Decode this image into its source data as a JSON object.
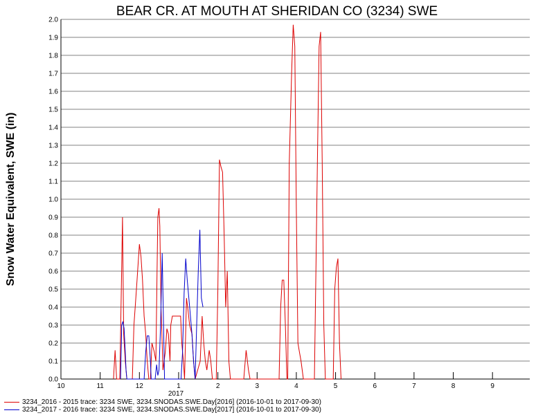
{
  "chart_data": {
    "type": "line",
    "title": "BEAR CR. AT MOUTH AT SHERIDAN CO (3234) SWE",
    "ylabel": "Snow Water Equivalent, SWE (in)",
    "xlabel": "",
    "ylim": [
      0,
      2.0
    ],
    "xlim": [
      10.0,
      10.95
    ],
    "x_tick_labels": [
      {
        "x": 10,
        "label": "10"
      },
      {
        "x": 11,
        "label": "11"
      },
      {
        "x": 12,
        "label": "12"
      },
      {
        "x": 13,
        "label": "1"
      },
      {
        "x": 14,
        "label": "2"
      },
      {
        "x": 15,
        "label": "3"
      },
      {
        "x": 16,
        "label": "4"
      },
      {
        "x": 17,
        "label": "5"
      },
      {
        "x": 18,
        "label": "6"
      },
      {
        "x": 19,
        "label": "7"
      },
      {
        "x": 20,
        "label": "8"
      },
      {
        "x": 21,
        "label": "9"
      }
    ],
    "year_label": {
      "x": 13,
      "label": "2017"
    },
    "y_ticks": [
      0.0,
      0.1,
      0.2,
      0.3,
      0.4,
      0.5,
      0.6,
      0.7,
      0.8,
      0.9,
      1.0,
      1.1,
      1.2,
      1.3,
      1.4,
      1.5,
      1.6,
      1.7,
      1.8,
      1.9,
      2.0
    ],
    "grid": true,
    "legend_position": "bottom",
    "series": [
      {
        "name": "3234_2016 - 2015 trace: 3234 SWE, 3234.SNODAS.SWE.Day[2016] (2016-10-01 to 2017-09-30)",
        "color": "#dd0000",
        "points": [
          [
            11.34,
            0
          ],
          [
            11.38,
            0.16
          ],
          [
            11.42,
            0
          ],
          [
            11.5,
            0
          ],
          [
            11.54,
            0.5
          ],
          [
            11.57,
            0.9
          ],
          [
            11.6,
            0.25
          ],
          [
            11.64,
            0.1
          ],
          [
            11.68,
            0
          ],
          [
            11.82,
            0
          ],
          [
            11.86,
            0.3
          ],
          [
            11.9,
            0.42
          ],
          [
            11.94,
            0.55
          ],
          [
            11.97,
            0.65
          ],
          [
            12.0,
            0.75
          ],
          [
            12.04,
            0.68
          ],
          [
            12.08,
            0.55
          ],
          [
            12.12,
            0.35
          ],
          [
            12.16,
            0.25
          ],
          [
            12.2,
            0.1
          ],
          [
            12.24,
            0
          ],
          [
            12.28,
            0
          ],
          [
            12.32,
            0.2
          ],
          [
            12.38,
            0.15
          ],
          [
            12.42,
            0.1
          ],
          [
            12.45,
            0.6
          ],
          [
            12.47,
            0.9
          ],
          [
            12.5,
            0.95
          ],
          [
            12.52,
            0.85
          ],
          [
            12.55,
            0.4
          ],
          [
            12.58,
            0.2
          ],
          [
            12.6,
            0.05
          ],
          [
            12.66,
            0.15
          ],
          [
            12.7,
            0.28
          ],
          [
            12.74,
            0.25
          ],
          [
            12.78,
            0.1
          ],
          [
            12.8,
            0.3
          ],
          [
            12.84,
            0.35
          ],
          [
            13.05,
            0.35
          ],
          [
            13.08,
            0.2
          ],
          [
            13.12,
            0.1
          ],
          [
            13.15,
            0
          ],
          [
            13.2,
            0.45
          ],
          [
            13.24,
            0.38
          ],
          [
            13.28,
            0.3
          ],
          [
            13.34,
            0.25
          ],
          [
            13.38,
            0.1
          ],
          [
            13.42,
            0
          ],
          [
            13.55,
            0.1
          ],
          [
            13.6,
            0.35
          ],
          [
            13.64,
            0.2
          ],
          [
            13.68,
            0.1
          ],
          [
            13.72,
            0.05
          ],
          [
            13.78,
            0.16
          ],
          [
            13.82,
            0.1
          ],
          [
            13.86,
            0
          ],
          [
            13.92,
            0
          ],
          [
            13.96,
            0
          ],
          [
            14.0,
            0.5
          ],
          [
            14.04,
            1.22
          ],
          [
            14.08,
            1.18
          ],
          [
            14.12,
            1.15
          ],
          [
            14.16,
            0.8
          ],
          [
            14.2,
            0.4
          ],
          [
            14.24,
            0.6
          ],
          [
            14.28,
            0.1
          ],
          [
            14.32,
            0
          ],
          [
            14.66,
            0
          ],
          [
            14.72,
            0.16
          ],
          [
            14.78,
            0.05
          ],
          [
            14.82,
            0
          ],
          [
            15.56,
            0
          ],
          [
            15.6,
            0.4
          ],
          [
            15.64,
            0.55
          ],
          [
            15.68,
            0.55
          ],
          [
            15.72,
            0.3
          ],
          [
            15.76,
            0
          ],
          [
            15.78,
            0
          ],
          [
            15.82,
            1.2
          ],
          [
            15.88,
            1.7
          ],
          [
            15.92,
            1.97
          ],
          [
            15.96,
            1.85
          ],
          [
            16.0,
            0.95
          ],
          [
            16.04,
            0.2
          ],
          [
            16.08,
            0.15
          ],
          [
            16.12,
            0.1
          ],
          [
            16.18,
            0
          ],
          [
            16.46,
            0
          ],
          [
            16.5,
            0.6
          ],
          [
            16.54,
            1.25
          ],
          [
            16.58,
            1.85
          ],
          [
            16.62,
            1.93
          ],
          [
            16.66,
            1.2
          ],
          [
            16.7,
            0.3
          ],
          [
            16.74,
            0
          ],
          [
            16.94,
            0
          ],
          [
            16.98,
            0.5
          ],
          [
            17.02,
            0.62
          ],
          [
            17.06,
            0.67
          ],
          [
            17.1,
            0.2
          ],
          [
            17.14,
            0
          ]
        ]
      },
      {
        "name": "3234_2017 - 2016 trace: 3234 SWE, 3234.SNODAS.SWE.Day[2017] (2016-10-01 to 2017-09-30)",
        "color": "#0000cc",
        "points": [
          [
            11.52,
            0
          ],
          [
            11.55,
            0.3
          ],
          [
            11.58,
            0.32
          ],
          [
            11.61,
            0.28
          ],
          [
            11.64,
            0.15
          ],
          [
            11.66,
            0.05
          ],
          [
            11.68,
            0
          ],
          [
            12.12,
            0
          ],
          [
            12.16,
            0.15
          ],
          [
            12.2,
            0.24
          ],
          [
            12.24,
            0.24
          ],
          [
            12.28,
            0.1
          ],
          [
            12.3,
            0
          ],
          [
            12.4,
            0
          ],
          [
            12.44,
            0.08
          ],
          [
            12.47,
            0.02
          ],
          [
            12.5,
            0.05
          ],
          [
            12.54,
            0.3
          ],
          [
            12.58,
            0.7
          ],
          [
            12.62,
            0.25
          ],
          [
            12.64,
            0
          ],
          [
            13.06,
            0
          ],
          [
            13.1,
            0.15
          ],
          [
            13.14,
            0.48
          ],
          [
            13.18,
            0.67
          ],
          [
            13.22,
            0.55
          ],
          [
            13.26,
            0.45
          ],
          [
            13.3,
            0.35
          ],
          [
            13.34,
            0.25
          ],
          [
            13.38,
            0.1
          ],
          [
            13.42,
            0
          ],
          [
            13.42,
            0
          ],
          [
            13.46,
            0.3
          ],
          [
            13.5,
            0.6
          ],
          [
            13.54,
            0.83
          ],
          [
            13.58,
            0.45
          ],
          [
            13.62,
            0.4
          ]
        ]
      }
    ]
  }
}
